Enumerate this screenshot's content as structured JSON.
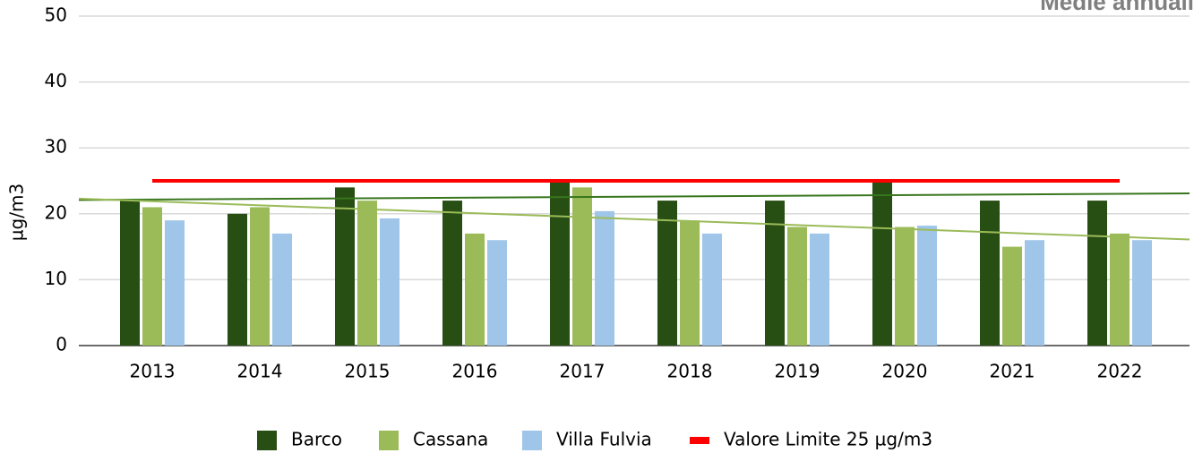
{
  "chart_data": {
    "type": "bar",
    "title": "Medie annuali",
    "y_label": "µg/m3",
    "categories": [
      "2013",
      "2014",
      "2015",
      "2016",
      "2017",
      "2018",
      "2019",
      "2020",
      "2021",
      "2022"
    ],
    "series": [
      {
        "name": "Barco",
        "color": "#274e13",
        "values": [
          22,
          20,
          24,
          22,
          25,
          22,
          22,
          25,
          22,
          22
        ],
        "trend": [
          22.1,
          23.1
        ],
        "trend_color": "#38761d"
      },
      {
        "name": "Cassana",
        "color": "#9bbb59",
        "values": [
          21,
          21,
          22,
          17,
          24,
          19,
          18,
          18,
          15,
          17
        ],
        "trend": [
          22.3,
          16.1
        ],
        "trend_color": "#9bbb59"
      },
      {
        "name": "Villa Fulvia",
        "color": "#9fc5e8",
        "values": [
          19,
          17,
          19.3,
          16,
          20.4,
          17,
          17,
          18.2,
          16,
          16
        ]
      }
    ],
    "limit": {
      "name": "Valore Limite 25 µg/m3",
      "color": "#ff0000",
      "value": 25
    },
    "ylim": [
      0,
      50
    ],
    "yticks": [
      0,
      10,
      20,
      30,
      40,
      50
    ],
    "grid": true
  }
}
